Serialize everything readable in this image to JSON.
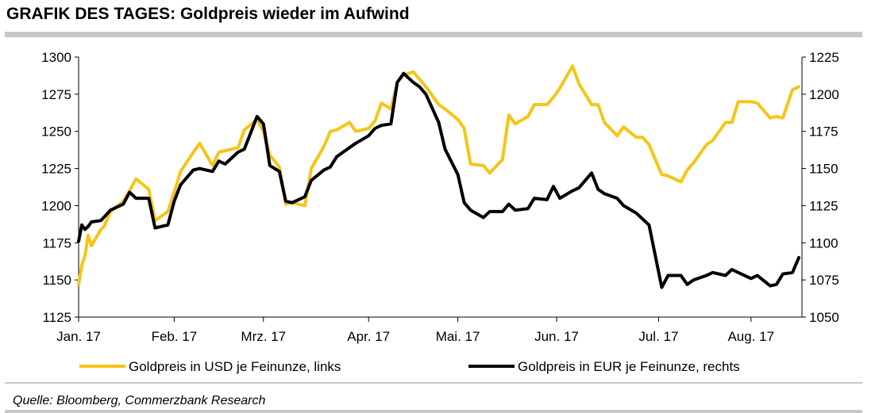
{
  "title": "GRAFIK DES TAGES: Goldpreis wieder im Aufwind",
  "source": "Quelle: Bloomberg, Commerzbank Research",
  "colors": {
    "usd": "#f5c518",
    "eur": "#000000"
  },
  "chart_data": {
    "type": "line",
    "title": "GRAFIK DES TAGES: Goldpreis wieder im Aufwind",
    "xlabel": "",
    "ylabel": "",
    "x_ticks": [
      "Jan. 17",
      "Feb. 17",
      "Mrz. 17",
      "Apr. 17",
      "Mai. 17",
      "Jun. 17",
      "Jul. 17",
      "Aug. 17"
    ],
    "y_left_ticks": [
      "1125",
      "1150",
      "1175",
      "1200",
      "1225",
      "1250",
      "1275",
      "1300"
    ],
    "y_right_ticks": [
      "1050",
      "1075",
      "1100",
      "1125",
      "1150",
      "1175",
      "1200",
      "1225"
    ],
    "ylim_left": [
      1125,
      1300
    ],
    "ylim_right": [
      1050,
      1225
    ],
    "legend_position": "bottom",
    "grid": false,
    "series": [
      {
        "name": "Goldpreis in USD je Feinunze, links",
        "axis": "left",
        "x": [
          "2017-01-02",
          "2017-01-03",
          "2017-01-04",
          "2017-01-05",
          "2017-01-06",
          "2017-01-09",
          "2017-01-10",
          "2017-01-12",
          "2017-01-16",
          "2017-01-18",
          "2017-01-20",
          "2017-01-24",
          "2017-01-26",
          "2017-01-30",
          "2017-02-01",
          "2017-02-03",
          "2017-02-07",
          "2017-02-09",
          "2017-02-13",
          "2017-02-15",
          "2017-02-17",
          "2017-02-21",
          "2017-02-23",
          "2017-02-27",
          "2017-03-01",
          "2017-03-03",
          "2017-03-06",
          "2017-03-08",
          "2017-03-10",
          "2017-03-14",
          "2017-03-16",
          "2017-03-20",
          "2017-03-22",
          "2017-03-24",
          "2017-03-28",
          "2017-03-30",
          "2017-04-03",
          "2017-04-05",
          "2017-04-07",
          "2017-04-10",
          "2017-04-12",
          "2017-04-14",
          "2017-04-17",
          "2017-04-19",
          "2017-04-21",
          "2017-04-25",
          "2017-04-27",
          "2017-05-01",
          "2017-05-03",
          "2017-05-05",
          "2017-05-09",
          "2017-05-11",
          "2017-05-15",
          "2017-05-17",
          "2017-05-19",
          "2017-05-23",
          "2017-05-25",
          "2017-05-29",
          "2017-05-31",
          "2017-06-02",
          "2017-06-06",
          "2017-06-08",
          "2017-06-12",
          "2017-06-14",
          "2017-06-16",
          "2017-06-20",
          "2017-06-22",
          "2017-06-26",
          "2017-06-28",
          "2017-06-30",
          "2017-07-04",
          "2017-07-06",
          "2017-07-10",
          "2017-07-12",
          "2017-07-14",
          "2017-07-18",
          "2017-07-20",
          "2017-07-24",
          "2017-07-26",
          "2017-07-28",
          "2017-08-01",
          "2017-08-03",
          "2017-08-07",
          "2017-08-09",
          "2017-08-11",
          "2017-08-14",
          "2017-08-16"
        ],
        "values": [
          1147,
          1160,
          1166,
          1180,
          1173,
          1184,
          1186,
          1196,
          1203,
          1210,
          1218,
          1211,
          1190,
          1196,
          1209,
          1223,
          1236,
          1242,
          1227,
          1236,
          1237,
          1239,
          1251,
          1258,
          1250,
          1234,
          1226,
          1201,
          1202,
          1200,
          1225,
          1240,
          1250,
          1251,
          1256,
          1250,
          1252,
          1257,
          1269,
          1265,
          1283,
          1288,
          1290,
          1285,
          1280,
          1268,
          1265,
          1258,
          1252,
          1228,
          1227,
          1222,
          1231,
          1261,
          1255,
          1260,
          1268,
          1268,
          1273,
          1279,
          1294,
          1282,
          1268,
          1268,
          1256,
          1247,
          1253,
          1246,
          1246,
          1241,
          1221,
          1220,
          1216,
          1224,
          1229,
          1241,
          1244,
          1256,
          1256,
          1270,
          1270,
          1269,
          1259,
          1260,
          1259,
          1278,
          1280
        ]
      },
      {
        "name": "Goldpreis in EUR je Feinunze, rechts",
        "axis": "right",
        "x": [
          "2017-01-02",
          "2017-01-03",
          "2017-01-04",
          "2017-01-05",
          "2017-01-06",
          "2017-01-09",
          "2017-01-12",
          "2017-01-16",
          "2017-01-18",
          "2017-01-20",
          "2017-01-24",
          "2017-01-26",
          "2017-01-30",
          "2017-02-01",
          "2017-02-03",
          "2017-02-07",
          "2017-02-09",
          "2017-02-13",
          "2017-02-15",
          "2017-02-17",
          "2017-02-21",
          "2017-02-23",
          "2017-02-27",
          "2017-03-01",
          "2017-03-03",
          "2017-03-06",
          "2017-03-08",
          "2017-03-10",
          "2017-03-14",
          "2017-03-16",
          "2017-03-20",
          "2017-03-22",
          "2017-03-24",
          "2017-03-28",
          "2017-03-30",
          "2017-04-03",
          "2017-04-05",
          "2017-04-07",
          "2017-04-10",
          "2017-04-12",
          "2017-04-14",
          "2017-04-17",
          "2017-04-19",
          "2017-04-21",
          "2017-04-25",
          "2017-04-27",
          "2017-05-01",
          "2017-05-03",
          "2017-05-05",
          "2017-05-09",
          "2017-05-11",
          "2017-05-15",
          "2017-05-17",
          "2017-05-19",
          "2017-05-23",
          "2017-05-25",
          "2017-05-29",
          "2017-05-31",
          "2017-06-02",
          "2017-06-06",
          "2017-06-08",
          "2017-06-12",
          "2017-06-14",
          "2017-06-16",
          "2017-06-20",
          "2017-06-22",
          "2017-06-26",
          "2017-06-28",
          "2017-06-30",
          "2017-07-04",
          "2017-07-06",
          "2017-07-10",
          "2017-07-12",
          "2017-07-14",
          "2017-07-18",
          "2017-07-20",
          "2017-07-24",
          "2017-07-26",
          "2017-07-28",
          "2017-08-01",
          "2017-08-03",
          "2017-08-07",
          "2017-08-09",
          "2017-08-11",
          "2017-08-14",
          "2017-08-16"
        ],
        "values": [
          1101,
          1112,
          1109,
          1111,
          1114,
          1115,
          1122,
          1126,
          1134,
          1130,
          1130,
          1110,
          1112,
          1128,
          1139,
          1149,
          1150,
          1148,
          1155,
          1153,
          1161,
          1163,
          1185,
          1180,
          1152,
          1148,
          1128,
          1127,
          1131,
          1142,
          1149,
          1151,
          1158,
          1164,
          1167,
          1172,
          1177,
          1179,
          1180,
          1208,
          1214,
          1208,
          1205,
          1200,
          1181,
          1163,
          1146,
          1127,
          1122,
          1117,
          1121,
          1121,
          1126,
          1122,
          1123,
          1130,
          1129,
          1138,
          1130,
          1135,
          1137,
          1147,
          1136,
          1133,
          1130,
          1125,
          1120,
          1116,
          1112,
          1070,
          1078,
          1078,
          1072,
          1075,
          1078,
          1080,
          1078,
          1082,
          1080,
          1076,
          1078,
          1071,
          1072,
          1079,
          1080,
          1090
        ]
      }
    ]
  }
}
